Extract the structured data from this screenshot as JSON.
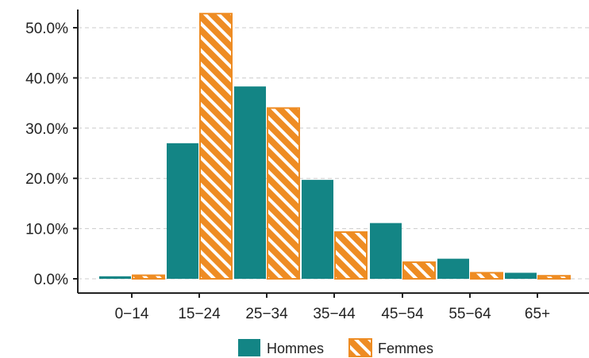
{
  "chart_data": {
    "type": "bar",
    "categories": [
      "0−14",
      "15−24",
      "25−34",
      "35−44",
      "45−54",
      "55−64",
      "65+"
    ],
    "series": [
      {
        "name": "Hommes",
        "values": [
          0.5,
          27.0,
          38.3,
          19.7,
          11.1,
          4.0,
          1.2
        ],
        "color": "#138585",
        "pattern": "solid"
      },
      {
        "name": "Femmes",
        "values": [
          0.7,
          52.8,
          34.0,
          9.3,
          3.3,
          1.2,
          0.6
        ],
        "color": "#EE8C23",
        "pattern": "hatched"
      }
    ],
    "yticks": [
      "0.0%",
      "10.0%",
      "20.0%",
      "30.0%",
      "40.0%",
      "50.0%"
    ],
    "ytick_values": [
      0,
      10,
      20,
      30,
      40,
      50
    ],
    "ylim": [
      0,
      55
    ],
    "y_unit": "percent",
    "grid": "horizontal dashed",
    "legend_position": "bottom",
    "title": "",
    "xlabel": "",
    "ylabel": ""
  }
}
